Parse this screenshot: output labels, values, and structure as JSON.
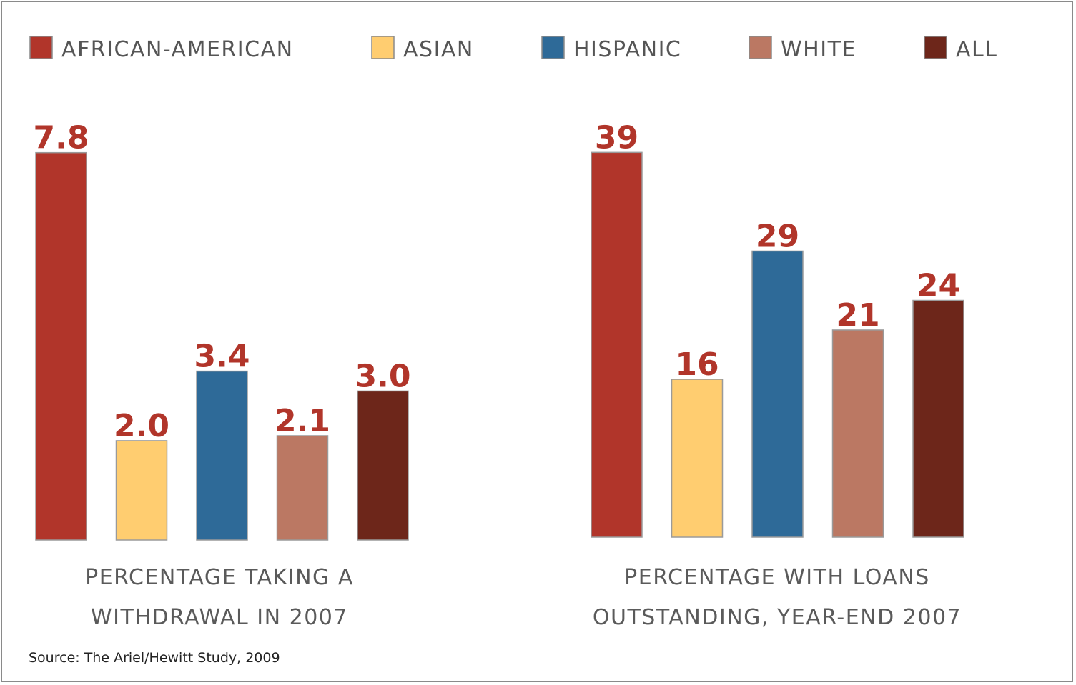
{
  "chart_data": [
    {
      "type": "bar",
      "title": [
        "PERCENTAGE TAKING A",
        "WITHDRAWAL IN 2007"
      ],
      "categories": [
        "AFRICAN-AMERICAN",
        "ASIAN",
        "HISPANIC",
        "WHITE",
        "ALL"
      ],
      "values": [
        7.8,
        2.0,
        3.4,
        2.1,
        3.0
      ],
      "value_labels": [
        "7.8",
        "2.0",
        "3.4",
        "2.1",
        "3.0"
      ],
      "colors": [
        "#b1352a",
        "#ffcd70",
        "#2e6a98",
        "#bb7863",
        "#6d261a"
      ],
      "ylim": [
        0,
        8.5
      ],
      "grid": false
    },
    {
      "type": "bar",
      "title": [
        "PERCENTAGE WITH LOANS",
        "OUTSTANDING, YEAR-END 2007"
      ],
      "categories": [
        "AFRICAN-AMERICAN",
        "ASIAN",
        "HISPANIC",
        "WHITE",
        "ALL"
      ],
      "values": [
        39,
        16,
        29,
        21,
        24
      ],
      "value_labels": [
        "39",
        "16",
        "29",
        "21",
        "24"
      ],
      "colors": [
        "#b1352a",
        "#ffcd70",
        "#2e6a98",
        "#bb7863",
        "#6d261a"
      ],
      "ylim": [
        0,
        42.5
      ],
      "grid": false
    }
  ],
  "legend": {
    "placement": "top",
    "items": [
      {
        "label": "AFRICAN-AMERICAN",
        "color": "#b1352a"
      },
      {
        "label": "ASIAN",
        "color": "#ffcd70"
      },
      {
        "label": "HISPANIC",
        "color": "#2e6a98"
      },
      {
        "label": "WHITE",
        "color": "#bb7863"
      },
      {
        "label": "ALL",
        "color": "#6d261a"
      }
    ]
  },
  "source": "Source: The Ariel/Hewitt Study, 2009"
}
